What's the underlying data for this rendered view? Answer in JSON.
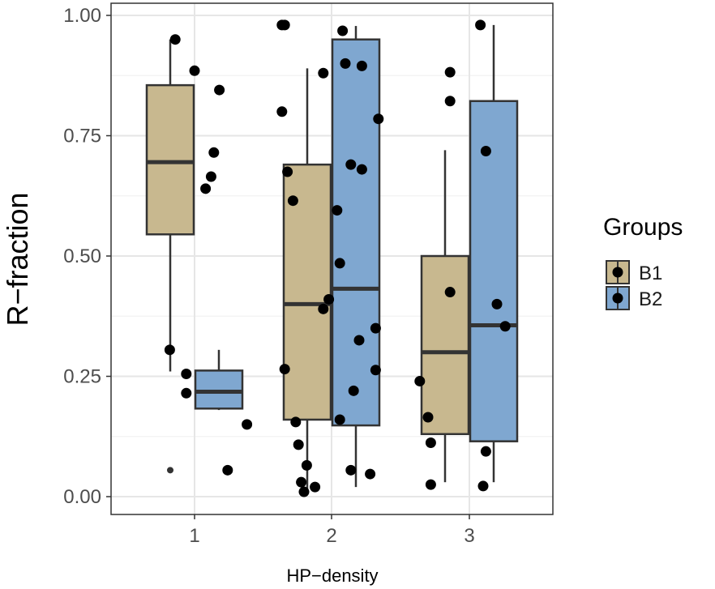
{
  "chart_data": {
    "type": "boxplot",
    "xlabel": "HP−density",
    "ylabel": "R−fraction",
    "categories": [
      "1",
      "2",
      "3"
    ],
    "ylim": [
      0,
      1
    ],
    "yticks": [
      0.0,
      0.25,
      0.5,
      0.75,
      1.0
    ],
    "ytick_labels": [
      "0.00",
      "0.25",
      "0.50",
      "0.75",
      "1.00"
    ],
    "grid": true,
    "legend": {
      "title": "Groups",
      "position": "right",
      "entries": [
        {
          "name": "B1",
          "color": "#c8b88f"
        },
        {
          "name": "B2",
          "color": "#7fa7d0"
        }
      ]
    },
    "series": [
      {
        "name": "B1",
        "color": "#c8b88f",
        "boxes": [
          {
            "category": "1",
            "min": 0.26,
            "q1": 0.545,
            "median": 0.695,
            "q3": 0.855,
            "max": 0.95,
            "outliers": [
              0.055
            ]
          },
          {
            "category": "2",
            "min": 0.01,
            "q1": 0.16,
            "median": 0.4,
            "q3": 0.69,
            "max": 0.89,
            "outliers": []
          },
          {
            "category": "3",
            "min": 0.03,
            "q1": 0.13,
            "median": 0.3,
            "q3": 0.5,
            "max": 0.72,
            "outliers": []
          }
        ],
        "points": [
          {
            "category": "1",
            "x_offset": -0.07,
            "y": 0.95
          },
          {
            "category": "1",
            "x_offset": -0.09,
            "y": 0.305
          },
          {
            "category": "1",
            "x_offset": -0.03,
            "y": 0.255
          },
          {
            "category": "1",
            "x_offset": -0.03,
            "y": 0.215
          },
          {
            "category": "1",
            "x_offset": 0.0,
            "y": 0.885
          },
          {
            "category": "1",
            "x_offset": 0.09,
            "y": 0.845
          },
          {
            "category": "1",
            "x_offset": 0.07,
            "y": 0.715
          },
          {
            "category": "1",
            "x_offset": 0.06,
            "y": 0.665
          },
          {
            "category": "1",
            "x_offset": 0.04,
            "y": 0.64
          },
          {
            "category": "2",
            "x_offset": -0.18,
            "y": 0.98
          },
          {
            "category": "2",
            "x_offset": -0.17,
            "y": 0.98
          },
          {
            "category": "2",
            "x_offset": -0.18,
            "y": 0.8
          },
          {
            "category": "2",
            "x_offset": -0.16,
            "y": 0.675
          },
          {
            "category": "2",
            "x_offset": -0.14,
            "y": 0.615
          },
          {
            "category": "2",
            "x_offset": -0.17,
            "y": 0.265
          },
          {
            "category": "2",
            "x_offset": -0.13,
            "y": 0.155
          },
          {
            "category": "2",
            "x_offset": -0.12,
            "y": 0.108
          },
          {
            "category": "2",
            "x_offset": -0.09,
            "y": 0.065
          },
          {
            "category": "2",
            "x_offset": -0.11,
            "y": 0.03
          },
          {
            "category": "2",
            "x_offset": -0.06,
            "y": 0.02
          },
          {
            "category": "2",
            "x_offset": -0.1,
            "y": 0.01
          },
          {
            "category": "2",
            "x_offset": -0.03,
            "y": 0.88
          },
          {
            "category": "2",
            "x_offset": -0.01,
            "y": 0.41
          },
          {
            "category": "2",
            "x_offset": -0.03,
            "y": 0.39
          },
          {
            "category": "2",
            "x_offset": 0.02,
            "y": 0.595
          },
          {
            "category": "2",
            "x_offset": 0.03,
            "y": 0.485
          },
          {
            "category": "2",
            "x_offset": 0.03,
            "y": 0.16
          },
          {
            "category": "2",
            "x_offset": 0.07,
            "y": 0.055
          },
          {
            "category": "2",
            "x_offset": 0.08,
            "y": 0.22
          }
        ]
      },
      {
        "name": "B2",
        "color": "#7fa7d0",
        "boxes": [
          {
            "category": "1",
            "min": 0.18,
            "q1": 0.183,
            "median": 0.218,
            "q3": 0.262,
            "max": 0.305,
            "outliers": []
          },
          {
            "category": "2",
            "min": 0.02,
            "q1": 0.148,
            "median": 0.432,
            "q3": 0.95,
            "max": 0.978,
            "outliers": []
          },
          {
            "category": "3",
            "min": 0.03,
            "q1": 0.115,
            "median": 0.356,
            "q3": 0.822,
            "max": 0.98,
            "outliers": []
          }
        ],
        "points": [
          {
            "category": "1",
            "x_offset": 0.19,
            "y": 0.15
          },
          {
            "category": "1",
            "x_offset": 0.12,
            "y": 0.055
          },
          {
            "category": "2",
            "x_offset": 0.04,
            "y": 0.968
          },
          {
            "category": "2",
            "x_offset": 0.05,
            "y": 0.9
          },
          {
            "category": "2",
            "x_offset": 0.11,
            "y": 0.895
          },
          {
            "category": "2",
            "x_offset": 0.17,
            "y": 0.785
          },
          {
            "category": "2",
            "x_offset": 0.07,
            "y": 0.69
          },
          {
            "category": "2",
            "x_offset": 0.11,
            "y": 0.68
          },
          {
            "category": "2",
            "x_offset": 0.16,
            "y": 0.35
          },
          {
            "category": "2",
            "x_offset": 0.1,
            "y": 0.325
          },
          {
            "category": "2",
            "x_offset": 0.16,
            "y": 0.263
          },
          {
            "category": "2",
            "x_offset": 0.14,
            "y": 0.047
          },
          {
            "category": "3",
            "x_offset": -0.18,
            "y": 0.24
          },
          {
            "category": "3",
            "x_offset": -0.15,
            "y": 0.165
          },
          {
            "category": "3",
            "x_offset": -0.14,
            "y": 0.112
          },
          {
            "category": "3",
            "x_offset": -0.14,
            "y": 0.025
          },
          {
            "category": "3",
            "x_offset": -0.07,
            "y": 0.425
          },
          {
            "category": "3",
            "x_offset": -0.07,
            "y": 0.882
          },
          {
            "category": "3",
            "x_offset": -0.07,
            "y": 0.822
          },
          {
            "category": "3",
            "x_offset": 0.04,
            "y": 0.98
          },
          {
            "category": "3",
            "x_offset": 0.06,
            "y": 0.718
          },
          {
            "category": "3",
            "x_offset": 0.1,
            "y": 0.4
          },
          {
            "category": "3",
            "x_offset": 0.13,
            "y": 0.354
          },
          {
            "category": "3",
            "x_offset": 0.06,
            "y": 0.094
          },
          {
            "category": "3",
            "x_offset": 0.05,
            "y": 0.022
          }
        ]
      }
    ]
  }
}
